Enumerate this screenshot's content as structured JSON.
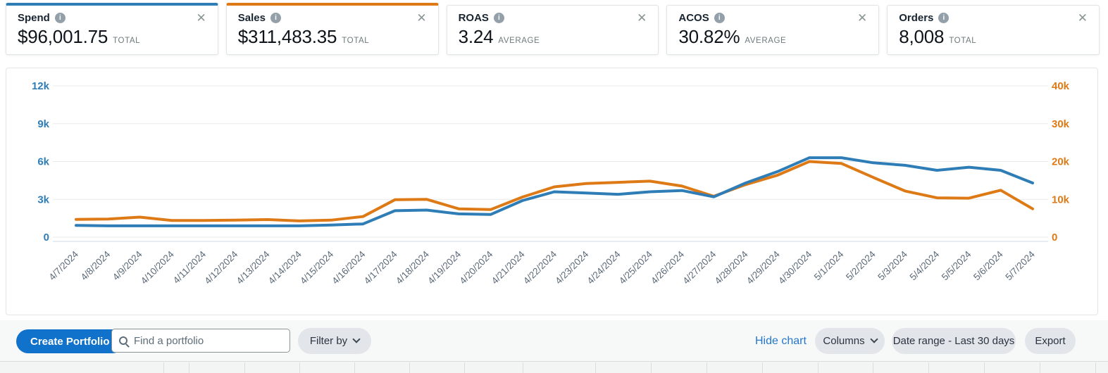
{
  "metric_cards": [
    {
      "label": "Spend",
      "value": "$96,001.75",
      "unit": "TOTAL",
      "accent_color": "#2e7db6"
    },
    {
      "label": "Sales",
      "value": "$311,483.35",
      "unit": "TOTAL",
      "accent_color": "#dd7a16"
    },
    {
      "label": "ROAS",
      "value": "3.24",
      "unit": "AVERAGE",
      "accent_color": ""
    },
    {
      "label": "ACOS",
      "value": "30.82%",
      "unit": "AVERAGE",
      "accent_color": ""
    },
    {
      "label": "Orders",
      "value": "8,008",
      "unit": "TOTAL",
      "accent_color": ""
    }
  ],
  "chart_data": {
    "type": "line",
    "x": [
      "4/7/2024",
      "4/8/2024",
      "4/9/2024",
      "4/10/2024",
      "4/11/2024",
      "4/12/2024",
      "4/13/2024",
      "4/14/2024",
      "4/15/2024",
      "4/16/2024",
      "4/17/2024",
      "4/18/2024",
      "4/19/2024",
      "4/20/2024",
      "4/21/2024",
      "4/22/2024",
      "4/23/2024",
      "4/24/2024",
      "4/25/2024",
      "4/26/2024",
      "4/27/2024",
      "4/28/2024",
      "4/29/2024",
      "4/30/2024",
      "5/1/2024",
      "5/2/2024",
      "5/3/2024",
      "5/4/2024",
      "5/5/2024",
      "5/6/2024",
      "5/7/2024"
    ],
    "series": [
      {
        "name": "Spend",
        "axis": "left",
        "color": "#2e7db6",
        "values": [
          940,
          900,
          900,
          900,
          900,
          900,
          900,
          900,
          960,
          1050,
          2100,
          2150,
          1850,
          1800,
          2900,
          3600,
          3500,
          3400,
          3600,
          3700,
          3200,
          4300,
          5200,
          6300,
          6300,
          5900,
          5700,
          5300,
          5550,
          5300,
          4300
        ]
      },
      {
        "name": "Sales",
        "axis": "right",
        "color": "#dd7a16",
        "values": [
          4700,
          4800,
          5300,
          4400,
          4400,
          4500,
          4650,
          4300,
          4500,
          5450,
          9900,
          10000,
          7500,
          7300,
          10600,
          13300,
          14200,
          14500,
          14800,
          13500,
          10800,
          13900,
          16400,
          20000,
          19500,
          15800,
          12200,
          10400,
          10300,
          12400,
          7500
        ]
      }
    ],
    "left_axis": {
      "ticks": [
        "0",
        "3k",
        "6k",
        "9k",
        "12k"
      ],
      "max": 12000,
      "color": "#2e7db6"
    },
    "right_axis": {
      "ticks": [
        "0",
        "10k",
        "20k",
        "30k",
        "40k"
      ],
      "max": 40000,
      "color": "#dd7a16"
    },
    "grid": true,
    "x_label_color": "#5c6a78",
    "title": "",
    "legend_position": "none"
  },
  "toolbar": {
    "create_button": "Create Portfolio",
    "search_placeholder": "Find a portfolio",
    "filter_label": "Filter by",
    "hide_chart": "Hide chart",
    "columns_label": "Columns",
    "date_range_label": "Date range - Last 30 days",
    "export_label": "Export"
  },
  "table_header": {
    "dividers": [
      232,
      268,
      347,
      425,
      503,
      581,
      659,
      742,
      845,
      924,
      1003,
      1082,
      1161,
      1239,
      1318,
      1397,
      1476,
      1555
    ]
  },
  "colors": {
    "primary_button": "#1172cc",
    "link": "#2577c9",
    "chart_blue": "#2e7db6",
    "chart_orange": "#dd7a16"
  }
}
